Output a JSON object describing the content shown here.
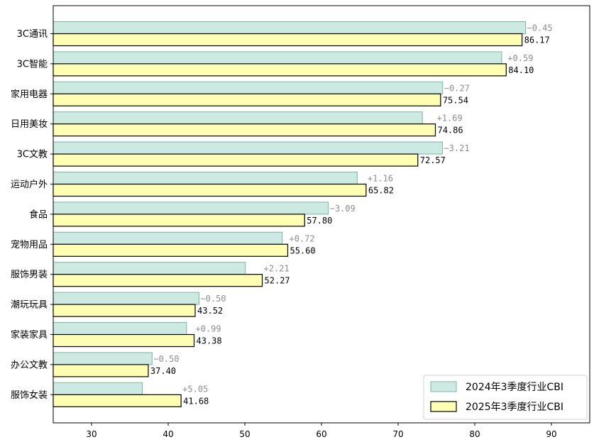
{
  "chart_data": {
    "type": "bar",
    "orientation": "horizontal",
    "categories": [
      "3C通讯",
      "3C智能",
      "家用电器",
      "日用美妆",
      "3C文教",
      "运动户外",
      "食品",
      "宠物用品",
      "服饰男装",
      "潮玩玩具",
      "家装家具",
      "办公文教",
      "服饰女装"
    ],
    "series": [
      {
        "name": "2024年3季度行业CBI",
        "color": "#cdeae2",
        "edge": "#7fb3a6",
        "values": [
          86.62,
          83.51,
          75.81,
          73.17,
          75.78,
          64.66,
          60.89,
          54.88,
          50.06,
          44.02,
          42.39,
          37.9,
          36.63
        ]
      },
      {
        "name": "2025年3季度行业CBI",
        "color": "#ffffb3",
        "edge": "#000000",
        "values": [
          86.17,
          84.1,
          75.54,
          74.86,
          72.57,
          65.82,
          57.8,
          55.6,
          52.27,
          43.52,
          43.38,
          37.4,
          41.68
        ]
      }
    ],
    "value_labels": [
      "86.17",
      "84.10",
      "75.54",
      "74.86",
      "72.57",
      "65.82",
      "57.80",
      "55.60",
      "52.27",
      "43.52",
      "43.38",
      "37.40",
      "41.68"
    ],
    "diff_labels": [
      "−0.45",
      "+0.59",
      "−0.27",
      "+1.69",
      "−3.21",
      "+1.16",
      "−3.09",
      "+0.72",
      "+2.21",
      "−0.50",
      "+0.99",
      "−0.50",
      "+5.05"
    ],
    "xlim": [
      25,
      95
    ],
    "xticks": [
      "30",
      "40",
      "50",
      "60",
      "70",
      "80",
      "90"
    ],
    "xtick_values": [
      30,
      40,
      50,
      60,
      70,
      80,
      90
    ],
    "grid": false,
    "legend_position": "lower-right",
    "title": "",
    "xlabel": "",
    "ylabel": ""
  }
}
